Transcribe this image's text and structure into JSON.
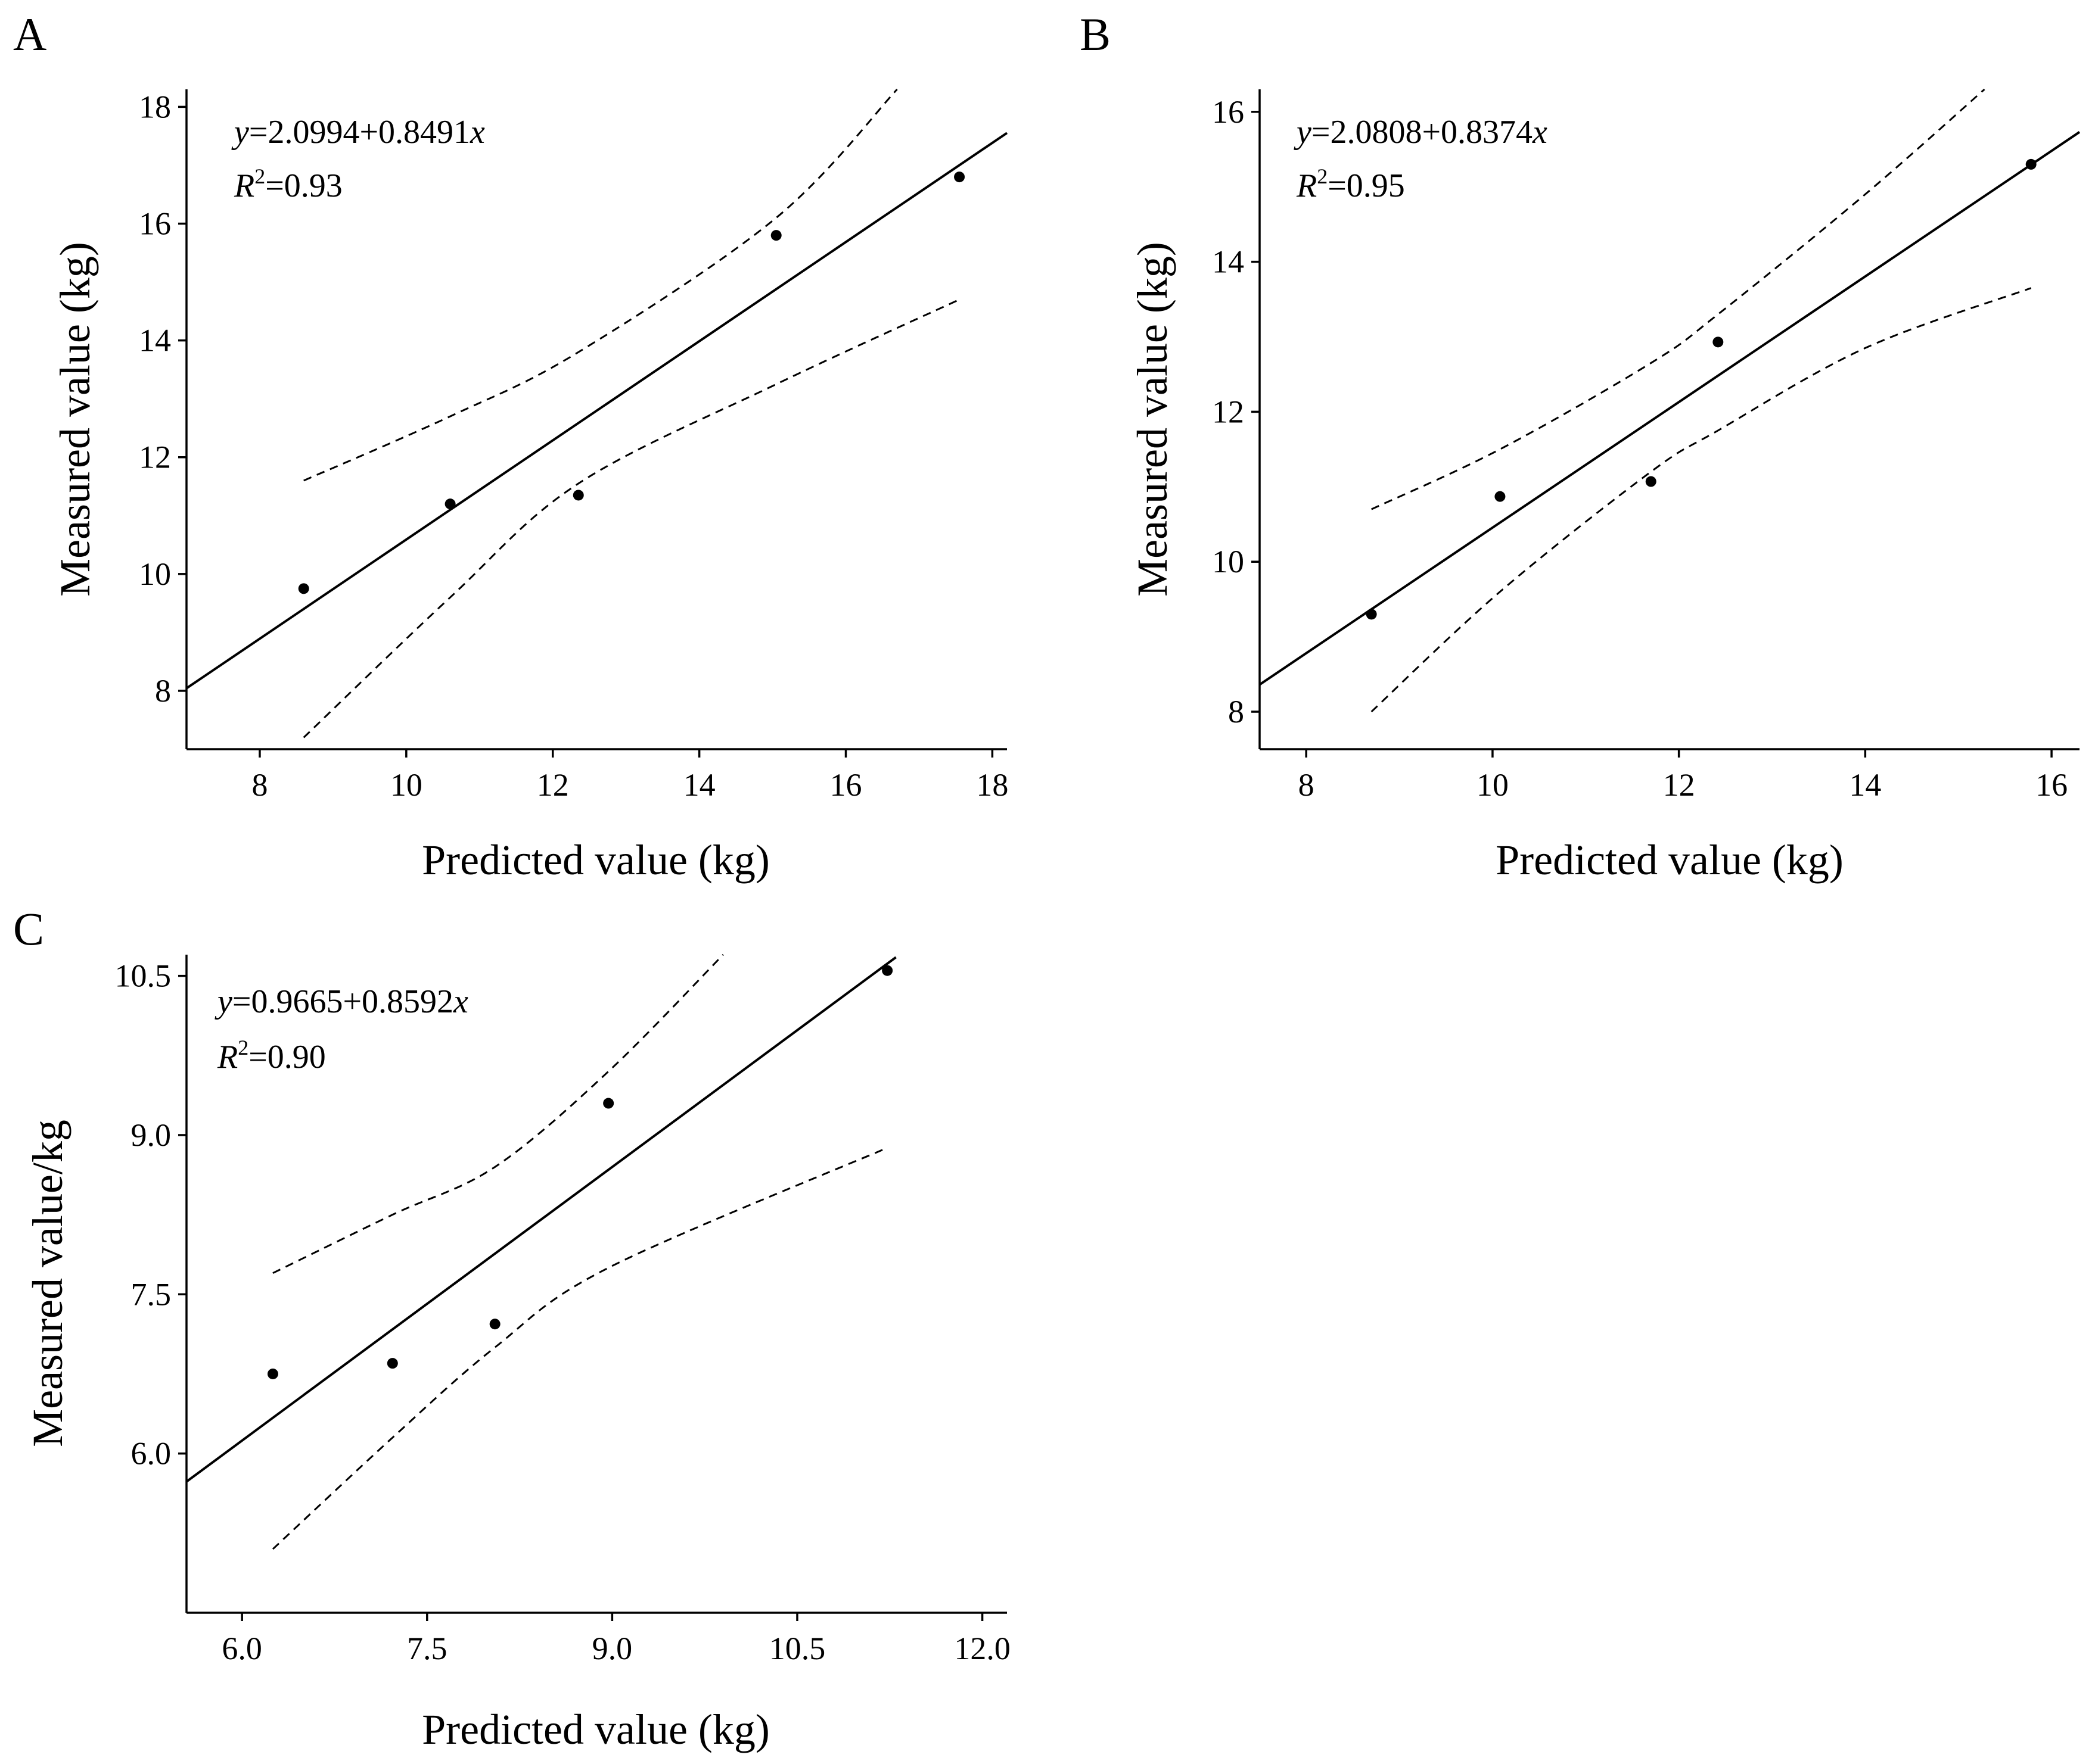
{
  "chart_data": [
    {
      "id": "A",
      "type": "scatter",
      "panel_label": "A",
      "xlabel": "Predicted value (kg)",
      "ylabel": "Measured value (kg)",
      "xlim": [
        7,
        18.2
      ],
      "ylim": [
        7,
        18.3
      ],
      "xticks": [
        8,
        10,
        12,
        14,
        16,
        18
      ],
      "yticks": [
        8,
        10,
        12,
        14,
        16,
        18
      ],
      "tick_labels_x": [
        "8",
        "10",
        "12",
        "14",
        "16",
        "18"
      ],
      "tick_labels_y": [
        "8",
        "10",
        "12",
        "14",
        "16",
        "18"
      ],
      "equation": {
        "y": "y",
        "rhs": "=2.0994+0.8491",
        "x": "x"
      },
      "r2": {
        "r": "R",
        "sup": "2",
        "rhs": "=0.93"
      },
      "fit": {
        "intercept": 2.0994,
        "slope": 0.8491,
        "x_range": [
          7,
          18.2
        ]
      },
      "points": [
        {
          "x": 8.6,
          "y": 9.75
        },
        {
          "x": 10.6,
          "y": 11.2
        },
        {
          "x": 12.35,
          "y": 11.35
        },
        {
          "x": 15.05,
          "y": 15.8
        },
        {
          "x": 17.55,
          "y": 16.8
        }
      ],
      "ci_upper": [
        [
          8.6,
          11.6
        ],
        [
          10.6,
          12.7
        ],
        [
          12.35,
          13.8
        ],
        [
          15.05,
          16.1
        ],
        [
          16.7,
          18.3
        ]
      ],
      "ci_lower": [
        [
          8.6,
          7.2
        ],
        [
          10.6,
          9.6
        ],
        [
          12.35,
          11.55
        ],
        [
          15.05,
          13.25
        ],
        [
          17.55,
          14.7
        ]
      ]
    },
    {
      "id": "B",
      "type": "scatter",
      "panel_label": "B",
      "xlabel": "Predicted value (kg)",
      "ylabel": "Measured value (kg)",
      "xlim": [
        7.5,
        16.3
      ],
      "ylim": [
        7.5,
        16.3
      ],
      "xticks": [
        8,
        10,
        12,
        14,
        16
      ],
      "yticks": [
        8,
        10,
        12,
        14,
        16
      ],
      "tick_labels_x": [
        "8",
        "10",
        "12",
        "14",
        "16"
      ],
      "tick_labels_y": [
        "8",
        "10",
        "12",
        "14",
        "16"
      ],
      "equation": {
        "y": "y",
        "rhs": "=2.0808+0.8374",
        "x": "x"
      },
      "r2": {
        "r": "R",
        "sup": "2",
        "rhs": "=0.95"
      },
      "fit": {
        "intercept": 2.0808,
        "slope": 0.8374,
        "x_range": [
          7.5,
          16.3
        ]
      },
      "points": [
        {
          "x": 8.7,
          "y": 9.3
        },
        {
          "x": 10.08,
          "y": 10.87
        },
        {
          "x": 11.7,
          "y": 11.07
        },
        {
          "x": 12.42,
          "y": 12.93
        },
        {
          "x": 15.78,
          "y": 15.3
        }
      ],
      "ci_upper": [
        [
          8.7,
          10.7
        ],
        [
          10.08,
          11.5
        ],
        [
          11.7,
          12.65
        ],
        [
          12.42,
          13.3
        ],
        [
          14.0,
          14.9
        ],
        [
          15.28,
          16.3
        ]
      ],
      "ci_lower": [
        [
          8.7,
          8.0
        ],
        [
          10.08,
          9.6
        ],
        [
          11.7,
          11.2
        ],
        [
          12.42,
          11.75
        ],
        [
          14.0,
          12.85
        ],
        [
          15.78,
          13.65
        ]
      ]
    },
    {
      "id": "C",
      "type": "scatter",
      "panel_label": "C",
      "xlabel": "Predicted value (kg)",
      "ylabel": "Measured value/kg",
      "xlim": [
        5.55,
        12.2
      ],
      "ylim": [
        4.5,
        10.7
      ],
      "xticks": [
        6.0,
        7.5,
        9.0,
        10.5,
        12.0
      ],
      "yticks": [
        6.0,
        7.5,
        9.0,
        10.5
      ],
      "tick_labels_x": [
        "6.0",
        "7.5",
        "9.0",
        "10.5",
        "12.0"
      ],
      "tick_labels_y": [
        "6.0",
        "7.5",
        "9.0",
        "10.5"
      ],
      "equation": {
        "y": "y",
        "rhs": "=0.9665+0.8592",
        "x": "x"
      },
      "r2": {
        "r": "R",
        "sup": "2",
        "rhs": "=0.90"
      },
      "fit": {
        "intercept": 0.9665,
        "slope": 0.8592,
        "x_range": [
          5.55,
          11.3
        ]
      },
      "points": [
        {
          "x": 6.25,
          "y": 6.75
        },
        {
          "x": 7.22,
          "y": 6.85
        },
        {
          "x": 8.05,
          "y": 7.22
        },
        {
          "x": 8.97,
          "y": 9.3
        },
        {
          "x": 11.23,
          "y": 10.55
        }
      ],
      "ci_upper": [
        [
          6.25,
          7.7
        ],
        [
          7.22,
          8.25
        ],
        [
          8.05,
          8.7
        ],
        [
          8.97,
          9.6
        ],
        [
          9.9,
          10.7
        ]
      ],
      "ci_lower": [
        [
          6.25,
          5.1
        ],
        [
          7.22,
          6.15
        ],
        [
          8.05,
          7.0
        ],
        [
          8.97,
          7.75
        ],
        [
          11.23,
          8.88
        ]
      ]
    }
  ]
}
